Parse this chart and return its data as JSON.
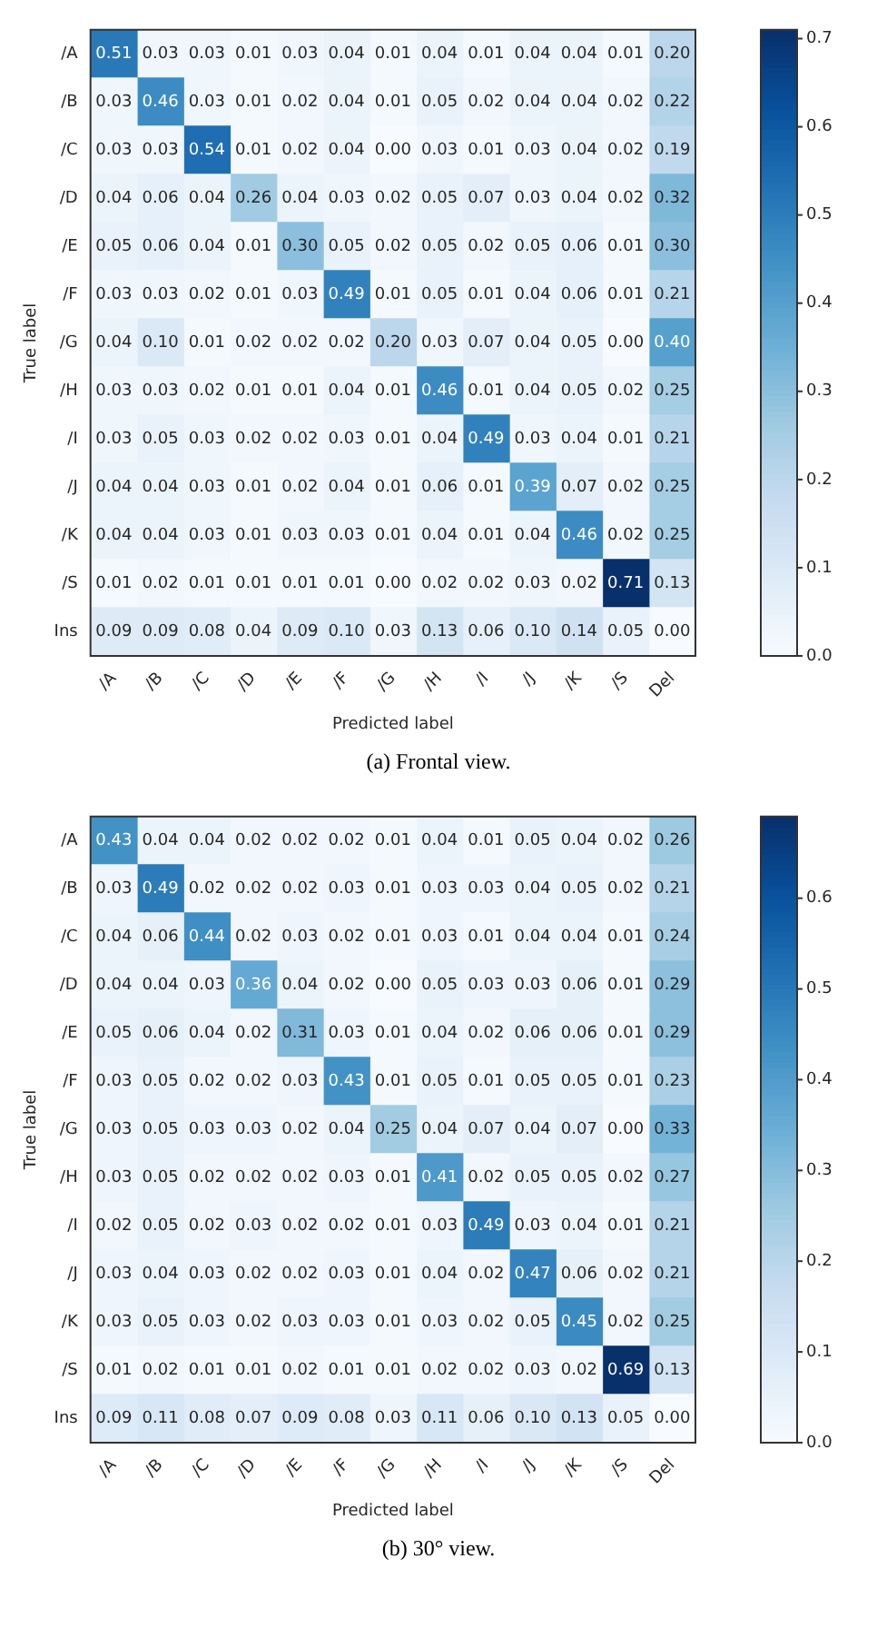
{
  "chart_data": [
    {
      "type": "heatmap",
      "xlabel": "Predicted label",
      "ylabel": "True label",
      "annotations": [
        "(a) Frontal view."
      ],
      "data_labels": true,
      "categories": [
        "/A",
        "/B",
        "/C",
        "/D",
        "/E",
        "/F",
        "/G",
        "/H",
        "/I",
        "/J",
        "/K",
        "/S",
        "Del"
      ],
      "y_categories": [
        "/A",
        "/B",
        "/C",
        "/D",
        "/E",
        "/F",
        "/G",
        "/H",
        "/I",
        "/J",
        "/K",
        "/S",
        "Ins"
      ],
      "cells": [
        [
          0.51,
          0.03,
          0.03,
          0.01,
          0.03,
          0.04,
          0.01,
          0.04,
          0.01,
          0.04,
          0.04,
          0.01,
          0.2
        ],
        [
          0.03,
          0.46,
          0.03,
          0.01,
          0.02,
          0.04,
          0.01,
          0.05,
          0.02,
          0.04,
          0.04,
          0.02,
          0.22
        ],
        [
          0.03,
          0.03,
          0.54,
          0.01,
          0.02,
          0.04,
          0.0,
          0.03,
          0.01,
          0.03,
          0.04,
          0.02,
          0.19
        ],
        [
          0.04,
          0.06,
          0.04,
          0.26,
          0.04,
          0.03,
          0.02,
          0.05,
          0.07,
          0.03,
          0.04,
          0.02,
          0.32
        ],
        [
          0.05,
          0.06,
          0.04,
          0.01,
          0.3,
          0.05,
          0.02,
          0.05,
          0.02,
          0.05,
          0.06,
          0.01,
          0.3
        ],
        [
          0.03,
          0.03,
          0.02,
          0.01,
          0.03,
          0.49,
          0.01,
          0.05,
          0.01,
          0.04,
          0.06,
          0.01,
          0.21
        ],
        [
          0.04,
          0.1,
          0.01,
          0.02,
          0.02,
          0.02,
          0.2,
          0.03,
          0.07,
          0.04,
          0.05,
          0.0,
          0.4
        ],
        [
          0.03,
          0.03,
          0.02,
          0.01,
          0.01,
          0.04,
          0.01,
          0.46,
          0.01,
          0.04,
          0.05,
          0.02,
          0.25
        ],
        [
          0.03,
          0.05,
          0.03,
          0.02,
          0.02,
          0.03,
          0.01,
          0.04,
          0.49,
          0.03,
          0.04,
          0.01,
          0.21
        ],
        [
          0.04,
          0.04,
          0.03,
          0.01,
          0.02,
          0.04,
          0.01,
          0.06,
          0.01,
          0.39,
          0.07,
          0.02,
          0.25
        ],
        [
          0.04,
          0.04,
          0.03,
          0.01,
          0.03,
          0.03,
          0.01,
          0.04,
          0.01,
          0.04,
          0.46,
          0.02,
          0.25
        ],
        [
          0.01,
          0.02,
          0.01,
          0.01,
          0.01,
          0.01,
          0.0,
          0.02,
          0.02,
          0.03,
          0.02,
          0.71,
          0.13
        ],
        [
          0.09,
          0.09,
          0.08,
          0.04,
          0.09,
          0.1,
          0.03,
          0.13,
          0.06,
          0.1,
          0.14,
          0.05,
          0.0
        ]
      ],
      "cell_labels": [
        [
          "0.51",
          "0.03",
          "0.03",
          "0.01",
          "0.03",
          "0.04",
          "0.01",
          "0.04",
          "0.01",
          "0.04",
          "0.04",
          "0.01",
          "0.20"
        ],
        [
          "0.03",
          "0.46",
          "0.03",
          "0.01",
          "0.02",
          "0.04",
          "0.01",
          "0.05",
          "0.02",
          "0.04",
          "0.04",
          "0.02",
          "0.22"
        ],
        [
          "0.03",
          "0.03",
          "0.54",
          "0.01",
          "0.02",
          "0.04",
          "0.00",
          "0.03",
          "0.01",
          "0.03",
          "0.04",
          "0.02",
          "0.19"
        ],
        [
          "0.04",
          "0.06",
          "0.04",
          "0.26",
          "0.04",
          "0.03",
          "0.02",
          "0.05",
          "0.07",
          "0.03",
          "0.04",
          "0.02",
          "0.32"
        ],
        [
          "0.05",
          "0.06",
          "0.04",
          "0.01",
          "0.30",
          "0.05",
          "0.02",
          "0.05",
          "0.02",
          "0.05",
          "0.06",
          "0.01",
          "0.30"
        ],
        [
          "0.03",
          "0.03",
          "0.02",
          "0.01",
          "0.03",
          "0.49",
          "0.01",
          "0.05",
          "0.01",
          "0.04",
          "0.06",
          "0.01",
          "0.21"
        ],
        [
          "0.04",
          "0.10",
          "0.01",
          "0.02",
          "0.02",
          "0.02",
          "0.20",
          "0.03",
          "0.07",
          "0.04",
          "0.05",
          "0.00",
          "0.40"
        ],
        [
          "0.03",
          "0.03",
          "0.02",
          "0.01",
          "0.01",
          "0.04",
          "0.01",
          "0.46",
          "0.01",
          "0.04",
          "0.05",
          "0.02",
          "0.25"
        ],
        [
          "0.03",
          "0.05",
          "0.03",
          "0.02",
          "0.02",
          "0.03",
          "0.01",
          "0.04",
          "0.49",
          "0.03",
          "0.04",
          "0.01",
          "0.21"
        ],
        [
          "0.04",
          "0.04",
          "0.03",
          "0.01",
          "0.02",
          "0.04",
          "0.01",
          "0.06",
          "0.01",
          "0.39",
          "0.07",
          "0.02",
          "0.25"
        ],
        [
          "0.04",
          "0.04",
          "0.03",
          "0.01",
          "0.03",
          "0.03",
          "0.01",
          "0.04",
          "0.01",
          "0.04",
          "0.46",
          "0.02",
          "0.25"
        ],
        [
          "0.01",
          "0.02",
          "0.01",
          "0.01",
          "0.01",
          "0.01",
          "0.00",
          "0.02",
          "0.02",
          "0.03",
          "0.02",
          "0.71",
          "0.13"
        ],
        [
          "0.09",
          "0.09",
          "0.08",
          "0.04",
          "0.09",
          "0.10",
          "0.03",
          "0.13",
          "0.06",
          "0.10",
          "0.14",
          "0.05",
          "0.00"
        ]
      ],
      "clim": [
        0,
        0.71
      ],
      "cticks": [
        {
          "value": 0,
          "label": "0.0"
        },
        {
          "value": 0.1,
          "label": "0.1"
        },
        {
          "value": 0.2,
          "label": "0.2"
        },
        {
          "value": 0.3,
          "label": "0.3"
        },
        {
          "value": 0.4,
          "label": "0.4"
        },
        {
          "value": 0.5,
          "label": "0.5"
        },
        {
          "value": 0.6,
          "label": "0.6"
        },
        {
          "value": 0.7,
          "label": "0.7"
        }
      ]
    },
    {
      "type": "heatmap",
      "xlabel": "Predicted label",
      "ylabel": "True label",
      "annotations": [
        "(b) 30° view."
      ],
      "data_labels": true,
      "categories": [
        "/A",
        "/B",
        "/C",
        "/D",
        "/E",
        "/F",
        "/G",
        "/H",
        "/I",
        "/J",
        "/K",
        "/S",
        "Del"
      ],
      "y_categories": [
        "/A",
        "/B",
        "/C",
        "/D",
        "/E",
        "/F",
        "/G",
        "/H",
        "/I",
        "/J",
        "/K",
        "/S",
        "Ins"
      ],
      "cells": [
        [
          0.43,
          0.04,
          0.04,
          0.02,
          0.02,
          0.02,
          0.01,
          0.04,
          0.01,
          0.05,
          0.04,
          0.02,
          0.26
        ],
        [
          0.03,
          0.49,
          0.02,
          0.02,
          0.02,
          0.03,
          0.01,
          0.03,
          0.03,
          0.04,
          0.05,
          0.02,
          0.21
        ],
        [
          0.04,
          0.06,
          0.44,
          0.02,
          0.03,
          0.02,
          0.01,
          0.03,
          0.01,
          0.04,
          0.04,
          0.01,
          0.24
        ],
        [
          0.04,
          0.04,
          0.03,
          0.36,
          0.04,
          0.02,
          0.0,
          0.05,
          0.03,
          0.03,
          0.06,
          0.01,
          0.29
        ],
        [
          0.05,
          0.06,
          0.04,
          0.02,
          0.31,
          0.03,
          0.01,
          0.04,
          0.02,
          0.06,
          0.06,
          0.01,
          0.29
        ],
        [
          0.03,
          0.05,
          0.02,
          0.02,
          0.03,
          0.43,
          0.01,
          0.05,
          0.01,
          0.05,
          0.05,
          0.01,
          0.23
        ],
        [
          0.03,
          0.05,
          0.03,
          0.03,
          0.02,
          0.04,
          0.25,
          0.04,
          0.07,
          0.04,
          0.07,
          0.0,
          0.33
        ],
        [
          0.03,
          0.05,
          0.02,
          0.02,
          0.02,
          0.03,
          0.01,
          0.41,
          0.02,
          0.05,
          0.05,
          0.02,
          0.27
        ],
        [
          0.02,
          0.05,
          0.02,
          0.03,
          0.02,
          0.02,
          0.01,
          0.03,
          0.49,
          0.03,
          0.04,
          0.01,
          0.21
        ],
        [
          0.03,
          0.04,
          0.03,
          0.02,
          0.02,
          0.03,
          0.01,
          0.04,
          0.02,
          0.47,
          0.06,
          0.02,
          0.21
        ],
        [
          0.03,
          0.05,
          0.03,
          0.02,
          0.03,
          0.03,
          0.01,
          0.03,
          0.02,
          0.05,
          0.45,
          0.02,
          0.25
        ],
        [
          0.01,
          0.02,
          0.01,
          0.01,
          0.02,
          0.01,
          0.01,
          0.02,
          0.02,
          0.03,
          0.02,
          0.69,
          0.13
        ],
        [
          0.09,
          0.11,
          0.08,
          0.07,
          0.09,
          0.08,
          0.03,
          0.11,
          0.06,
          0.1,
          0.13,
          0.05,
          0.0
        ]
      ],
      "cell_labels": [
        [
          "0.43",
          "0.04",
          "0.04",
          "0.02",
          "0.02",
          "0.02",
          "0.01",
          "0.04",
          "0.01",
          "0.05",
          "0.04",
          "0.02",
          "0.26"
        ],
        [
          "0.03",
          "0.49",
          "0.02",
          "0.02",
          "0.02",
          "0.03",
          "0.01",
          "0.03",
          "0.03",
          "0.04",
          "0.05",
          "0.02",
          "0.21"
        ],
        [
          "0.04",
          "0.06",
          "0.44",
          "0.02",
          "0.03",
          "0.02",
          "0.01",
          "0.03",
          "0.01",
          "0.04",
          "0.04",
          "0.01",
          "0.24"
        ],
        [
          "0.04",
          "0.04",
          "0.03",
          "0.36",
          "0.04",
          "0.02",
          "0.00",
          "0.05",
          "0.03",
          "0.03",
          "0.06",
          "0.01",
          "0.29"
        ],
        [
          "0.05",
          "0.06",
          "0.04",
          "0.02",
          "0.31",
          "0.03",
          "0.01",
          "0.04",
          "0.02",
          "0.06",
          "0.06",
          "0.01",
          "0.29"
        ],
        [
          "0.03",
          "0.05",
          "0.02",
          "0.02",
          "0.03",
          "0.43",
          "0.01",
          "0.05",
          "0.01",
          "0.05",
          "0.05",
          "0.01",
          "0.23"
        ],
        [
          "0.03",
          "0.05",
          "0.03",
          "0.03",
          "0.02",
          "0.04",
          "0.25",
          "0.04",
          "0.07",
          "0.04",
          "0.07",
          "0.00",
          "0.33"
        ],
        [
          "0.03",
          "0.05",
          "0.02",
          "0.02",
          "0.02",
          "0.03",
          "0.01",
          "0.41",
          "0.02",
          "0.05",
          "0.05",
          "0.02",
          "0.27"
        ],
        [
          "0.02",
          "0.05",
          "0.02",
          "0.03",
          "0.02",
          "0.02",
          "0.01",
          "0.03",
          "0.49",
          "0.03",
          "0.04",
          "0.01",
          "0.21"
        ],
        [
          "0.03",
          "0.04",
          "0.03",
          "0.02",
          "0.02",
          "0.03",
          "0.01",
          "0.04",
          "0.02",
          "0.47",
          "0.06",
          "0.02",
          "0.21"
        ],
        [
          "0.03",
          "0.05",
          "0.03",
          "0.02",
          "0.03",
          "0.03",
          "0.01",
          "0.03",
          "0.02",
          "0.05",
          "0.45",
          "0.02",
          "0.25"
        ],
        [
          "0.01",
          "0.02",
          "0.01",
          "0.01",
          "0.02",
          "0.01",
          "0.01",
          "0.02",
          "0.02",
          "0.03",
          "0.02",
          "0.69",
          "0.13"
        ],
        [
          "0.09",
          "0.11",
          "0.08",
          "0.07",
          "0.09",
          "0.08",
          "0.03",
          "0.11",
          "0.06",
          "0.10",
          "0.13",
          "0.05",
          "0.00"
        ]
      ],
      "clim": [
        0,
        0.69
      ],
      "cticks": [
        {
          "value": 0,
          "label": "0.0"
        },
        {
          "value": 0.1,
          "label": "0.1"
        },
        {
          "value": 0.2,
          "label": "0.2"
        },
        {
          "value": 0.3,
          "label": "0.3"
        },
        {
          "value": 0.4,
          "label": "0.4"
        },
        {
          "value": 0.5,
          "label": "0.5"
        },
        {
          "value": 0.6,
          "label": "0.6"
        }
      ]
    }
  ]
}
